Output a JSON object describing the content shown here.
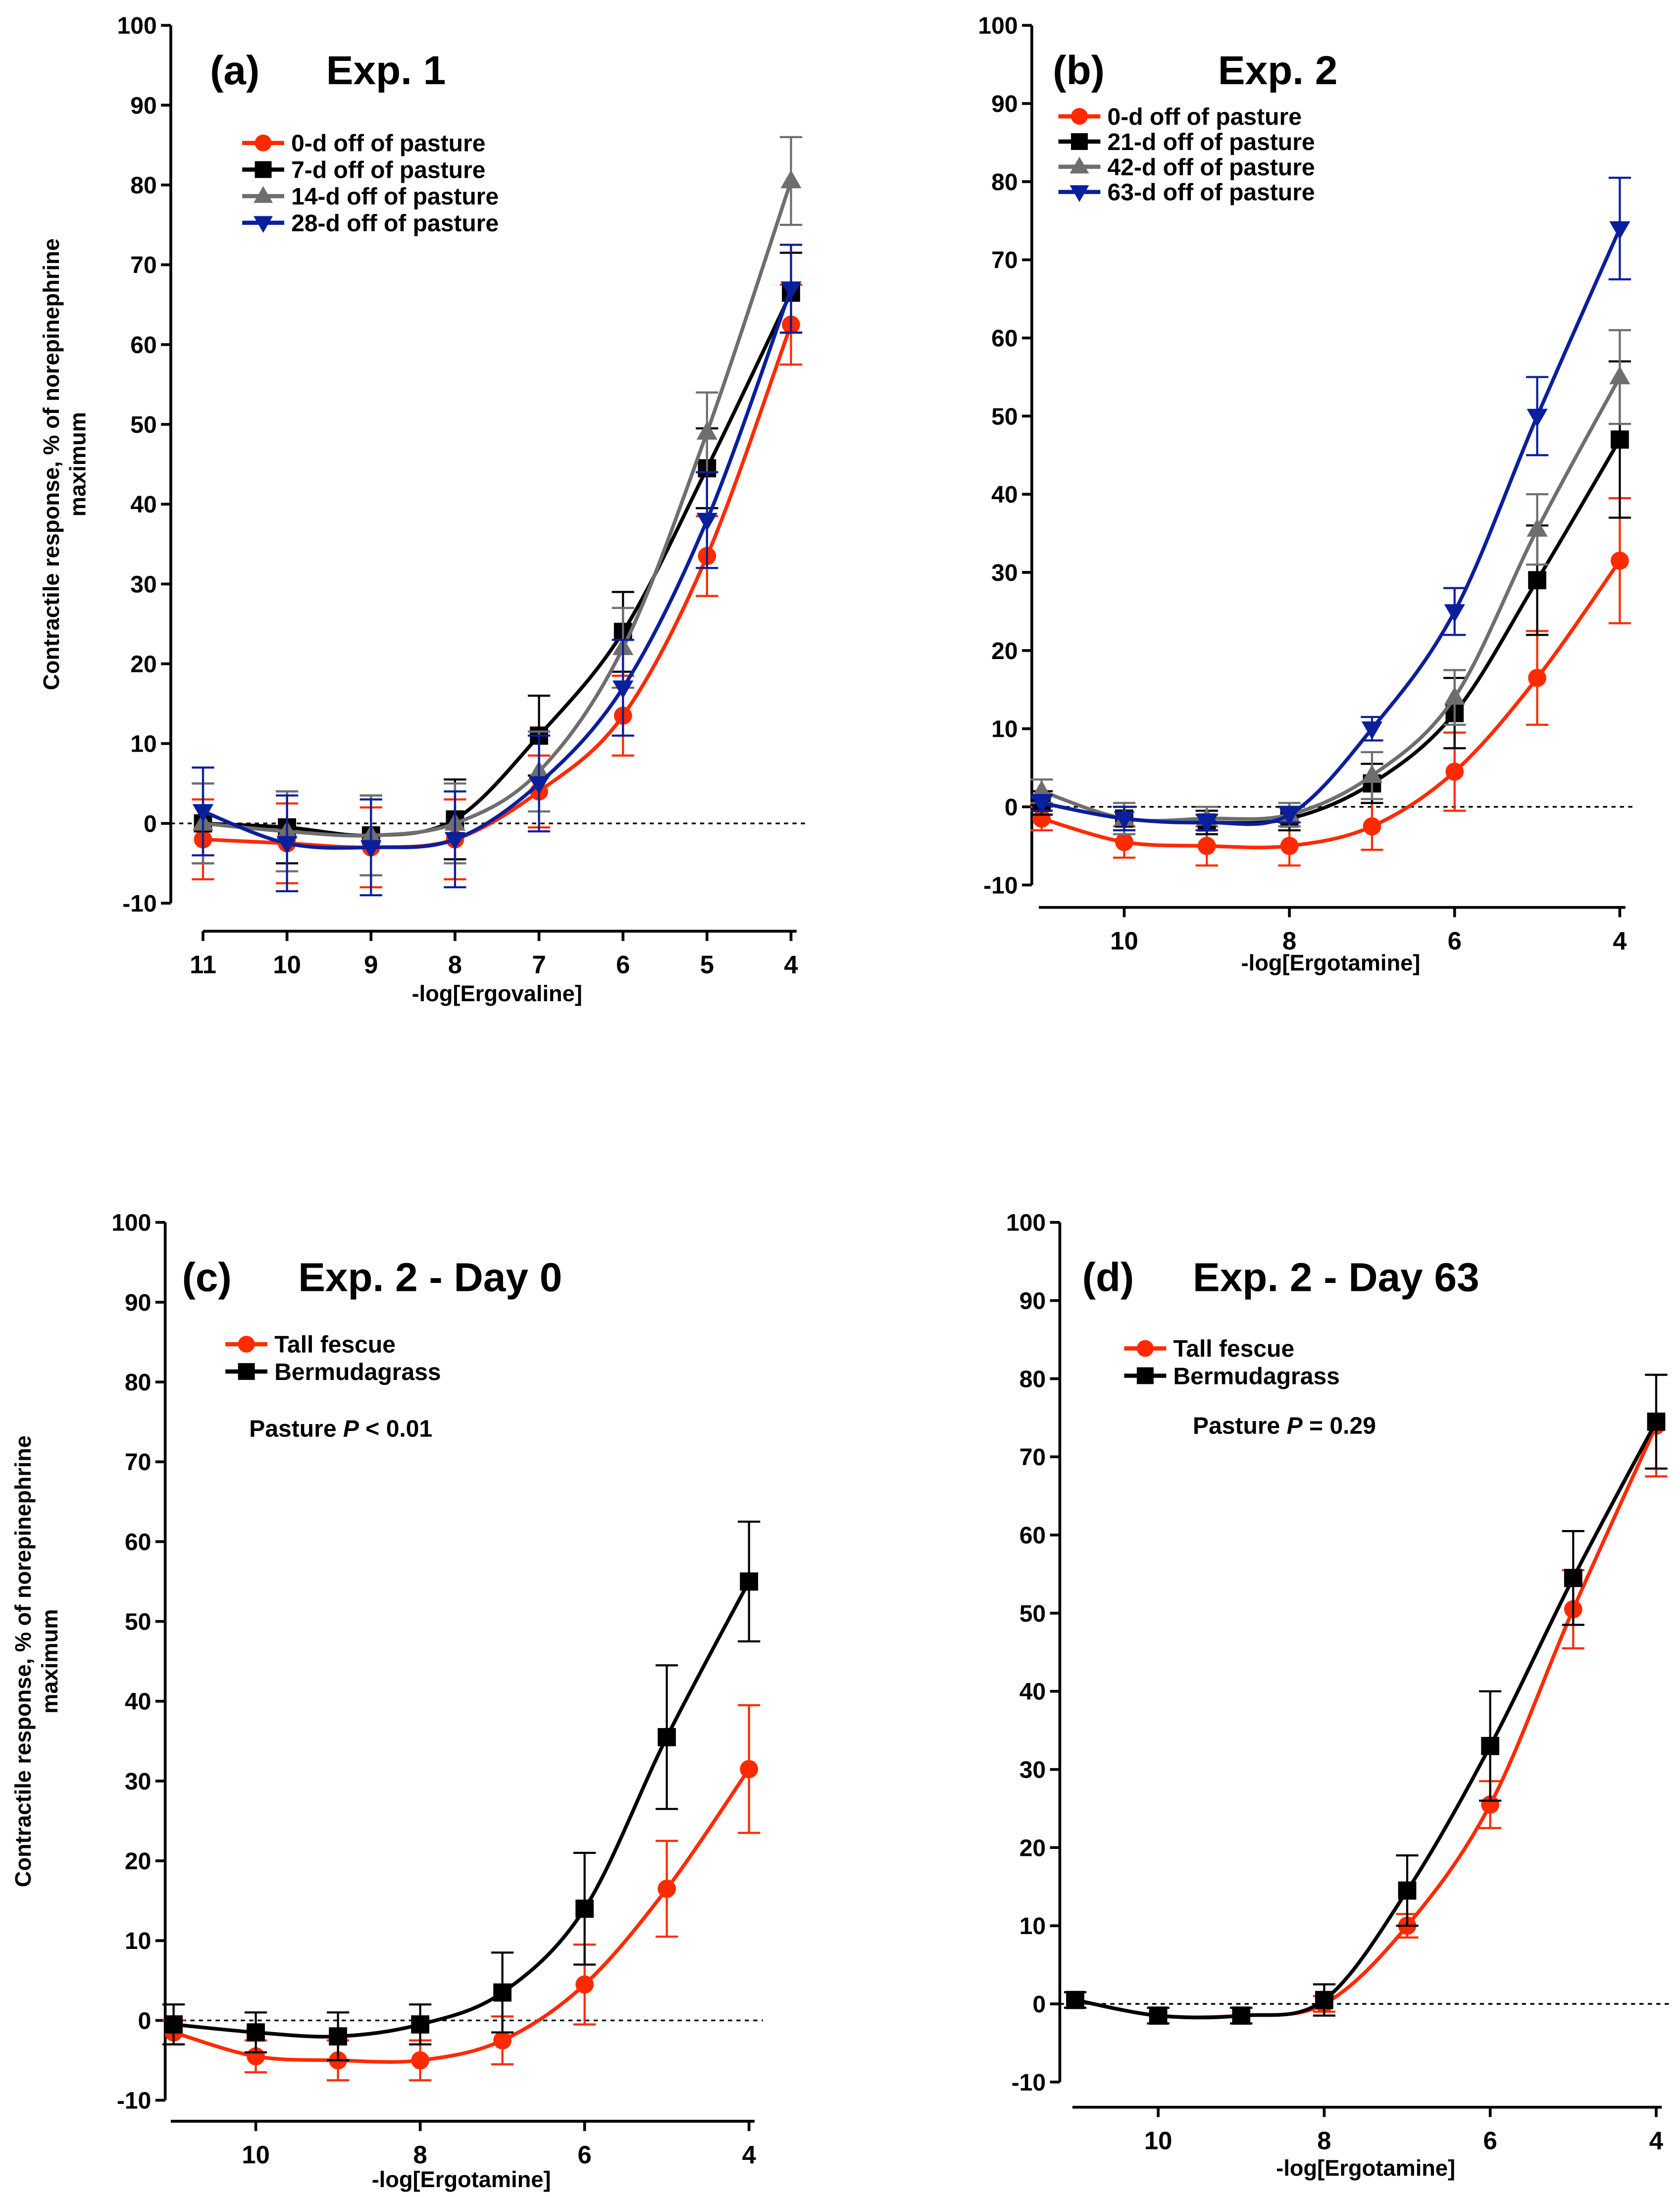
{
  "chart_data": [
    {
      "type": "line",
      "panel_label": "(a)",
      "title": "Exp. 1",
      "xlabel": "-log[Ergovaline]",
      "ylabel": "Contractile response, % of norepinephrine",
      "ylabel2": "maximum",
      "xlim": [
        11,
        4
      ],
      "ylim": [
        -10,
        100
      ],
      "xticks": [
        11,
        10,
        9,
        8,
        7,
        6,
        5,
        4
      ],
      "yticks": [
        -10,
        0,
        10,
        20,
        30,
        40,
        50,
        60,
        70,
        80,
        90,
        100
      ],
      "reference_line": 0,
      "x": [
        11,
        10,
        9,
        8,
        7,
        6,
        5,
        4
      ],
      "series": [
        {
          "name": "0-d off of pasture",
          "color": "#ff2a00",
          "marker": "circle",
          "values": [
            -2,
            -2.5,
            -3,
            -2,
            4,
            13.5,
            33.5,
            62.5
          ],
          "errors": [
            5,
            5,
            5,
            5,
            4.5,
            5,
            5,
            5
          ]
        },
        {
          "name": "7-d off of pasture",
          "color": "#000000",
          "marker": "square",
          "values": [
            0,
            -0.5,
            -1.5,
            0.5,
            11,
            24,
            44.5,
            66.5
          ],
          "errors": [
            5,
            4.5,
            5,
            5,
            5,
            5,
            5,
            5
          ]
        },
        {
          "name": "14-d off of pasture",
          "color": "#6e6e6e",
          "marker": "triangle-up",
          "values": [
            0,
            -1,
            -1.5,
            0,
            6.5,
            22,
            49,
            80.5
          ],
          "errors": [
            5,
            5,
            5,
            5,
            5,
            5,
            5,
            5.5
          ]
        },
        {
          "name": "28-d off of pasture",
          "color": "#0a1f9c",
          "marker": "triangle-down",
          "values": [
            1.5,
            -2.5,
            -3,
            -2,
            5,
            17,
            38,
            67
          ],
          "errors": [
            5.5,
            6,
            6,
            6,
            6,
            6,
            6,
            5.5
          ]
        }
      ]
    },
    {
      "type": "line",
      "panel_label": "(b)",
      "title": "Exp. 2",
      "xlabel": "-log[Ergotamine]",
      "ylabel": "",
      "ylabel2": "",
      "xlim": [
        11,
        4
      ],
      "ylim": [
        -10,
        100
      ],
      "xticks": [
        10,
        8,
        6,
        4
      ],
      "yticks": [
        -10,
        0,
        10,
        20,
        30,
        40,
        50,
        60,
        70,
        80,
        90,
        100
      ],
      "reference_line": 0,
      "x": [
        11,
        10,
        9,
        8,
        7,
        6,
        5,
        4
      ],
      "series": [
        {
          "name": "0-d off of pasture",
          "color": "#ff2a00",
          "marker": "circle",
          "values": [
            -1.5,
            -4.5,
            -5,
            -5,
            -2.5,
            4.5,
            16.5,
            31.5
          ],
          "errors": [
            1.5,
            2,
            2.5,
            2.5,
            3,
            5,
            6,
            8
          ]
        },
        {
          "name": "21-d off of pasture",
          "color": "#000000",
          "marker": "square",
          "values": [
            0.5,
            -1.5,
            -2,
            -1.5,
            3,
            12,
            29,
            47
          ],
          "errors": [
            1.5,
            1.5,
            1.5,
            1.5,
            2.5,
            4.5,
            7,
            10
          ]
        },
        {
          "name": "42-d off of pasture",
          "color": "#6e6e6e",
          "marker": "triangle-up",
          "values": [
            2,
            -1.5,
            -1.5,
            -1,
            4,
            14,
            35.5,
            55
          ],
          "errors": [
            1.5,
            2,
            1.5,
            1.5,
            3,
            3.5,
            4.5,
            6
          ]
        },
        {
          "name": "63-d off of pasture",
          "color": "#0a1f9c",
          "marker": "triangle-down",
          "values": [
            0.5,
            -1.5,
            -2,
            -1,
            10,
            25,
            50,
            74
          ],
          "errors": [
            1,
            1.5,
            1,
            1,
            1.5,
            3,
            5,
            6.5
          ]
        }
      ]
    },
    {
      "type": "line",
      "panel_label": "(c)",
      "title": "Exp. 2 - Day 0",
      "xlabel": "-log[Ergotamine]",
      "ylabel": "Contractile response, % of norepinephrine",
      "ylabel2": "maximum",
      "annotation": {
        "prefix": "Pasture ",
        "italic": "P",
        "suffix": " < 0.01"
      },
      "xlim": [
        11,
        4
      ],
      "ylim": [
        -10,
        100
      ],
      "xticks": [
        10,
        8,
        6,
        4
      ],
      "yticks": [
        -10,
        0,
        10,
        20,
        30,
        40,
        50,
        60,
        70,
        80,
        90,
        100
      ],
      "reference_line": 0,
      "x": [
        11,
        10,
        9,
        8,
        7,
        6,
        5,
        4
      ],
      "series": [
        {
          "name": "Tall fescue",
          "color": "#ff2a00",
          "marker": "circle",
          "values": [
            -1.5,
            -4.5,
            -5,
            -5,
            -2.5,
            4.5,
            16.5,
            31.5
          ],
          "errors": [
            1.5,
            2,
            2.5,
            2.5,
            3,
            5,
            6,
            8
          ]
        },
        {
          "name": "Bermudagrass",
          "color": "#000000",
          "marker": "square",
          "values": [
            -0.5,
            -1.5,
            -2,
            -0.5,
            3.5,
            14,
            35.5,
            55
          ],
          "errors": [
            2.5,
            2.5,
            3,
            2.5,
            5,
            7,
            9,
            7.5
          ]
        }
      ]
    },
    {
      "type": "line",
      "panel_label": "(d)",
      "title": "Exp. 2 - Day 63",
      "xlabel": "-log[Ergotamine]",
      "ylabel": "",
      "ylabel2": "",
      "annotation": {
        "prefix": "Pasture ",
        "italic": "P",
        "suffix": " = 0.29"
      },
      "xlim": [
        11,
        4
      ],
      "ylim": [
        -10,
        100
      ],
      "xticks": [
        10,
        8,
        6,
        4
      ],
      "yticks": [
        -10,
        0,
        10,
        20,
        30,
        40,
        50,
        60,
        70,
        80,
        90,
        100
      ],
      "reference_line": 0,
      "x": [
        11,
        10,
        9,
        8,
        7,
        6,
        5,
        4
      ],
      "series": [
        {
          "name": "Tall fescue",
          "color": "#ff2a00",
          "marker": "circle",
          "values": [
            0.5,
            -1.5,
            -1.5,
            0,
            10,
            25.5,
            50.5,
            74
          ],
          "errors": [
            1,
            1,
            1,
            1,
            1.5,
            3,
            5,
            6.5
          ]
        },
        {
          "name": "Bermudagrass",
          "color": "#000000",
          "marker": "square",
          "values": [
            0.5,
            -1.5,
            -1.5,
            0.5,
            14.5,
            33,
            54.5,
            74.5
          ],
          "errors": [
            1,
            1,
            1,
            2,
            4.5,
            7,
            6,
            6
          ]
        }
      ]
    }
  ]
}
